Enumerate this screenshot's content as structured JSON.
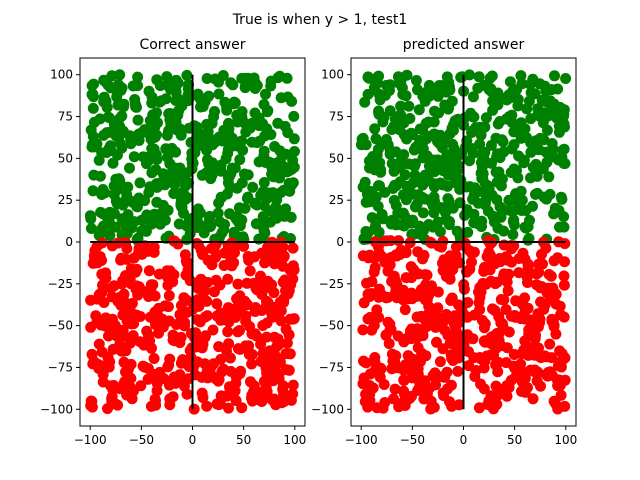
{
  "figure": {
    "suptitle": "True is when y > 1, test1"
  },
  "chart_data": [
    {
      "type": "scatter",
      "title": "Correct answer",
      "xlabel": "",
      "ylabel": "",
      "xlim": [
        -110,
        110
      ],
      "ylim": [
        -110,
        110
      ],
      "xticks": [
        -100,
        -50,
        0,
        50,
        100
      ],
      "yticks": [
        -100,
        -75,
        -50,
        -25,
        0,
        25,
        50,
        75,
        100
      ],
      "grid": false,
      "legend": "none",
      "series": [
        {
          "label_rule": "y > 1",
          "color": "#008000",
          "x_range": [
            -100,
            100
          ],
          "y_range": [
            1,
            100
          ],
          "approx_points": 500
        },
        {
          "label_rule": "y <= 1",
          "color": "#ff0000",
          "x_range": [
            -100,
            100
          ],
          "y_range": [
            -100,
            1
          ],
          "approx_points": 500
        }
      ],
      "reference_lines": [
        {
          "orientation": "horizontal",
          "value": 0,
          "from": -100,
          "to": 100,
          "color": "#000000"
        },
        {
          "orientation": "vertical",
          "value": 0,
          "from": -100,
          "to": 100,
          "color": "#000000"
        }
      ]
    },
    {
      "type": "scatter",
      "title": "predicted answer",
      "xlabel": "",
      "ylabel": "",
      "xlim": [
        -110,
        110
      ],
      "ylim": [
        -110,
        110
      ],
      "xticks": [
        -100,
        -50,
        0,
        50,
        100
      ],
      "yticks": [
        -100,
        -75,
        -50,
        -25,
        0,
        25,
        50,
        75,
        100
      ],
      "grid": false,
      "legend": "none",
      "series": [
        {
          "label_rule": "y > 1",
          "color": "#008000",
          "x_range": [
            -100,
            100
          ],
          "y_range": [
            1,
            100
          ],
          "approx_points": 500
        },
        {
          "label_rule": "y <= 1",
          "color": "#ff0000",
          "x_range": [
            -100,
            100
          ],
          "y_range": [
            -100,
            1
          ],
          "approx_points": 500
        }
      ],
      "reference_lines": [
        {
          "orientation": "horizontal",
          "value": 0,
          "from": -100,
          "to": 100,
          "color": "#000000"
        },
        {
          "orientation": "vertical",
          "value": 0,
          "from": -100,
          "to": 100,
          "color": "#000000"
        }
      ]
    }
  ]
}
